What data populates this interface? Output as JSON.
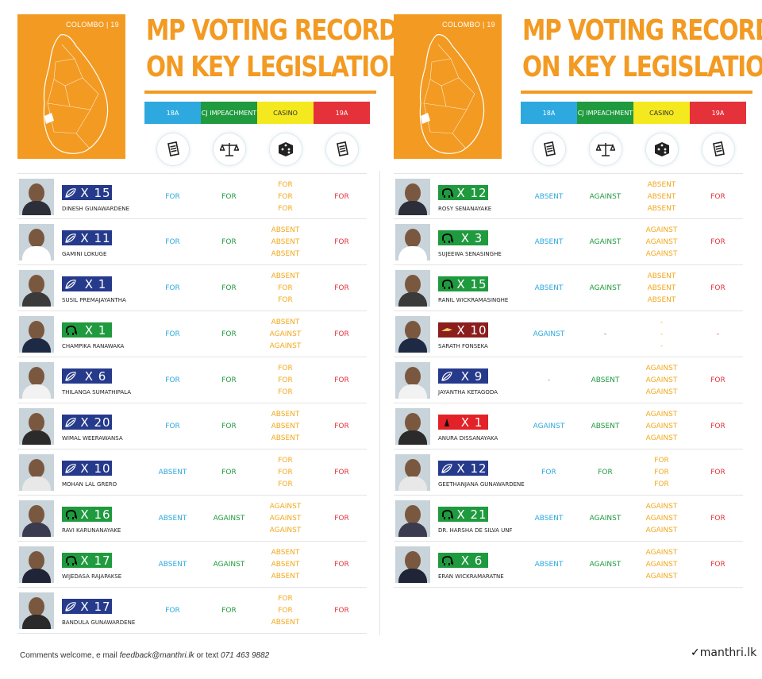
{
  "left": {
    "map_caption": "COLOMBO  |  19",
    "title_line1": "MP VOTING RECORD",
    "title_line2": "ON KEY LEGISLATION",
    "categories": [
      "18A",
      "CJ IMPEACHMENT",
      "CASINO",
      "19A"
    ],
    "icons": [
      "document-icon",
      "scales-icon",
      "dice-icon",
      "document-icon"
    ],
    "mps": [
      {
        "name": "DINESH GUNAWARDENE",
        "party": "upfa",
        "party_icon": "leaf-icon",
        "number": "X 15",
        "votes": [
          [
            "FOR"
          ],
          [
            "FOR"
          ],
          [
            "FOR",
            "FOR",
            "FOR"
          ],
          [
            "FOR"
          ]
        ]
      },
      {
        "name": "GAMINI LOKUGE",
        "party": "upfa",
        "party_icon": "leaf-icon",
        "number": "X 11",
        "votes": [
          [
            "FOR"
          ],
          [
            "FOR"
          ],
          [
            "ABSENT",
            "ABSENT",
            "ABSENT"
          ],
          [
            "FOR"
          ]
        ]
      },
      {
        "name": "SUSIL PREMAJAYANTHA",
        "party": "upfa",
        "party_icon": "leaf-icon",
        "number": "X 1",
        "votes": [
          [
            "FOR"
          ],
          [
            "FOR"
          ],
          [
            "ABSENT",
            "FOR",
            "FOR"
          ],
          [
            "FOR"
          ]
        ]
      },
      {
        "name": "CHAMPIKA RANAWAKA",
        "party": "unp",
        "party_icon": "elephant-icon",
        "number": "X 1",
        "votes": [
          [
            "FOR"
          ],
          [
            "FOR"
          ],
          [
            "ABSENT",
            "AGAINST",
            "AGAINST"
          ],
          [
            "FOR"
          ]
        ]
      },
      {
        "name": "THILANGA SUMATHIPALA",
        "party": "upfa",
        "party_icon": "leaf-icon",
        "number": "X 6",
        "votes": [
          [
            "FOR"
          ],
          [
            "FOR"
          ],
          [
            "FOR",
            "FOR",
            "FOR"
          ],
          [
            "FOR"
          ]
        ]
      },
      {
        "name": "WIMAL WEERAWANSA",
        "party": "upfa",
        "party_icon": "leaf-icon",
        "number": "X 20",
        "votes": [
          [
            "FOR"
          ],
          [
            "FOR"
          ],
          [
            "ABSENT",
            "ABSENT",
            "ABSENT"
          ],
          [
            "FOR"
          ]
        ]
      },
      {
        "name": "MOHAN LAL GRERO",
        "party": "upfa",
        "party_icon": "leaf-icon",
        "number": "X 10",
        "votes": [
          [
            "ABSENT"
          ],
          [
            "FOR"
          ],
          [
            "FOR",
            "FOR",
            "FOR"
          ],
          [
            "FOR"
          ]
        ]
      },
      {
        "name": "RAVI KARUNANAYAKE",
        "party": "unp",
        "party_icon": "elephant-icon",
        "number": "X 16",
        "votes": [
          [
            "ABSENT"
          ],
          [
            "AGAINST"
          ],
          [
            "AGAINST",
            "AGAINST",
            "AGAINST"
          ],
          [
            "FOR"
          ]
        ]
      },
      {
        "name": "WIJEDASA RAJAPAKSE",
        "party": "unp",
        "party_icon": "elephant-icon",
        "number": "X 17",
        "votes": [
          [
            "ABSENT"
          ],
          [
            "AGAINST"
          ],
          [
            "ABSENT",
            "ABSENT",
            "ABSENT"
          ],
          [
            "FOR"
          ]
        ]
      },
      {
        "name": "BANDULA GUNAWARDENE",
        "party": "upfa",
        "party_icon": "leaf-icon",
        "number": "X 17",
        "votes": [
          [
            "FOR"
          ],
          [
            "FOR"
          ],
          [
            "FOR",
            "FOR",
            "ABSENT"
          ],
          [
            "FOR"
          ]
        ]
      }
    ]
  },
  "right": {
    "map_caption": "COLOMBO  |  19",
    "title_line1": "MP VOTING RECORD",
    "title_line2": "ON KEY LEGISLATION",
    "categories": [
      "18A",
      "CJ IMPEACHMENT",
      "CASINO",
      "19A"
    ],
    "icons": [
      "document-icon",
      "scales-icon",
      "dice-icon",
      "document-icon"
    ],
    "mps": [
      {
        "name": "ROSY SENANAYAKE",
        "party": "unp",
        "party_icon": "elephant-icon",
        "number": "X 12",
        "votes": [
          [
            "ABSENT"
          ],
          [
            "AGAINST"
          ],
          [
            "ABSENT",
            "ABSENT",
            "ABSENT"
          ],
          [
            "FOR"
          ]
        ]
      },
      {
        "name": "SUJEEWA SENASINGHE",
        "party": "unp",
        "party_icon": "elephant-icon",
        "number": "X 3",
        "votes": [
          [
            "ABSENT"
          ],
          [
            "AGAINST"
          ],
          [
            "AGAINST",
            "AGAINST",
            "AGAINST"
          ],
          [
            "FOR"
          ]
        ]
      },
      {
        "name": "RANIL WICKRAMASINGHE",
        "party": "unp",
        "party_icon": "elephant-icon",
        "number": "X 15",
        "votes": [
          [
            "ABSENT"
          ],
          [
            "AGAINST"
          ],
          [
            "ABSENT",
            "ABSENT",
            "ABSENT"
          ],
          [
            "FOR"
          ]
        ]
      },
      {
        "name": "SARATH FONSEKA",
        "party": "dnp",
        "party_icon": "trophy-icon",
        "number": "X 10",
        "votes": [
          [
            "AGAINST"
          ],
          [
            "-"
          ],
          [
            "-",
            "-",
            "-"
          ],
          [
            "-"
          ]
        ]
      },
      {
        "name": "JAYANTHA KETAGODA",
        "party": "upfa",
        "party_icon": "leaf-icon",
        "number": "X 9",
        "votes": [
          [
            "-"
          ],
          [
            "ABSENT"
          ],
          [
            "AGAINST",
            "AGAINST",
            "AGAINST"
          ],
          [
            "FOR"
          ]
        ]
      },
      {
        "name": "ANURA DISSANAYAKA",
        "party": "jvp",
        "party_icon": "bell-icon",
        "number": "X 1",
        "votes": [
          [
            "AGAINST"
          ],
          [
            "ABSENT"
          ],
          [
            "AGAINST",
            "AGAINST",
            "AGAINST"
          ],
          [
            "FOR"
          ]
        ]
      },
      {
        "name": "GEETHANJANA GUNAWARDENE",
        "party": "upfa",
        "party_icon": "leaf-icon",
        "number": "X 12",
        "votes": [
          [
            "FOR"
          ],
          [
            "FOR"
          ],
          [
            "FOR",
            "FOR",
            "FOR"
          ],
          [
            "FOR"
          ]
        ]
      },
      {
        "name": "DR. HARSHA DE SILVA UNF",
        "party": "unp",
        "party_icon": "elephant-icon",
        "number": "X 21",
        "votes": [
          [
            "ABSENT"
          ],
          [
            "AGAINST"
          ],
          [
            "AGAINST",
            "AGAINST",
            "AGAINST"
          ],
          [
            "FOR"
          ]
        ]
      },
      {
        "name": "ERAN WICKRAMARATNE",
        "party": "unp",
        "party_icon": "elephant-icon",
        "number": "X 6",
        "votes": [
          [
            "ABSENT"
          ],
          [
            "AGAINST"
          ],
          [
            "AGAINST",
            "AGAINST",
            "AGAINST"
          ],
          [
            "FOR"
          ]
        ]
      }
    ]
  },
  "footer": {
    "text_prefix": "Comments welcome, e mail ",
    "email": "feedback@manthri.lk",
    "text_mid": " or text ",
    "phone": "071 463 9882",
    "logo": "manthri.lk"
  },
  "colors": {
    "accent": "#f39a22",
    "for_18a": "#2ea9df",
    "cj": "#1f9a3e",
    "casino": "#f2a81d",
    "a19": "#e4313a"
  }
}
